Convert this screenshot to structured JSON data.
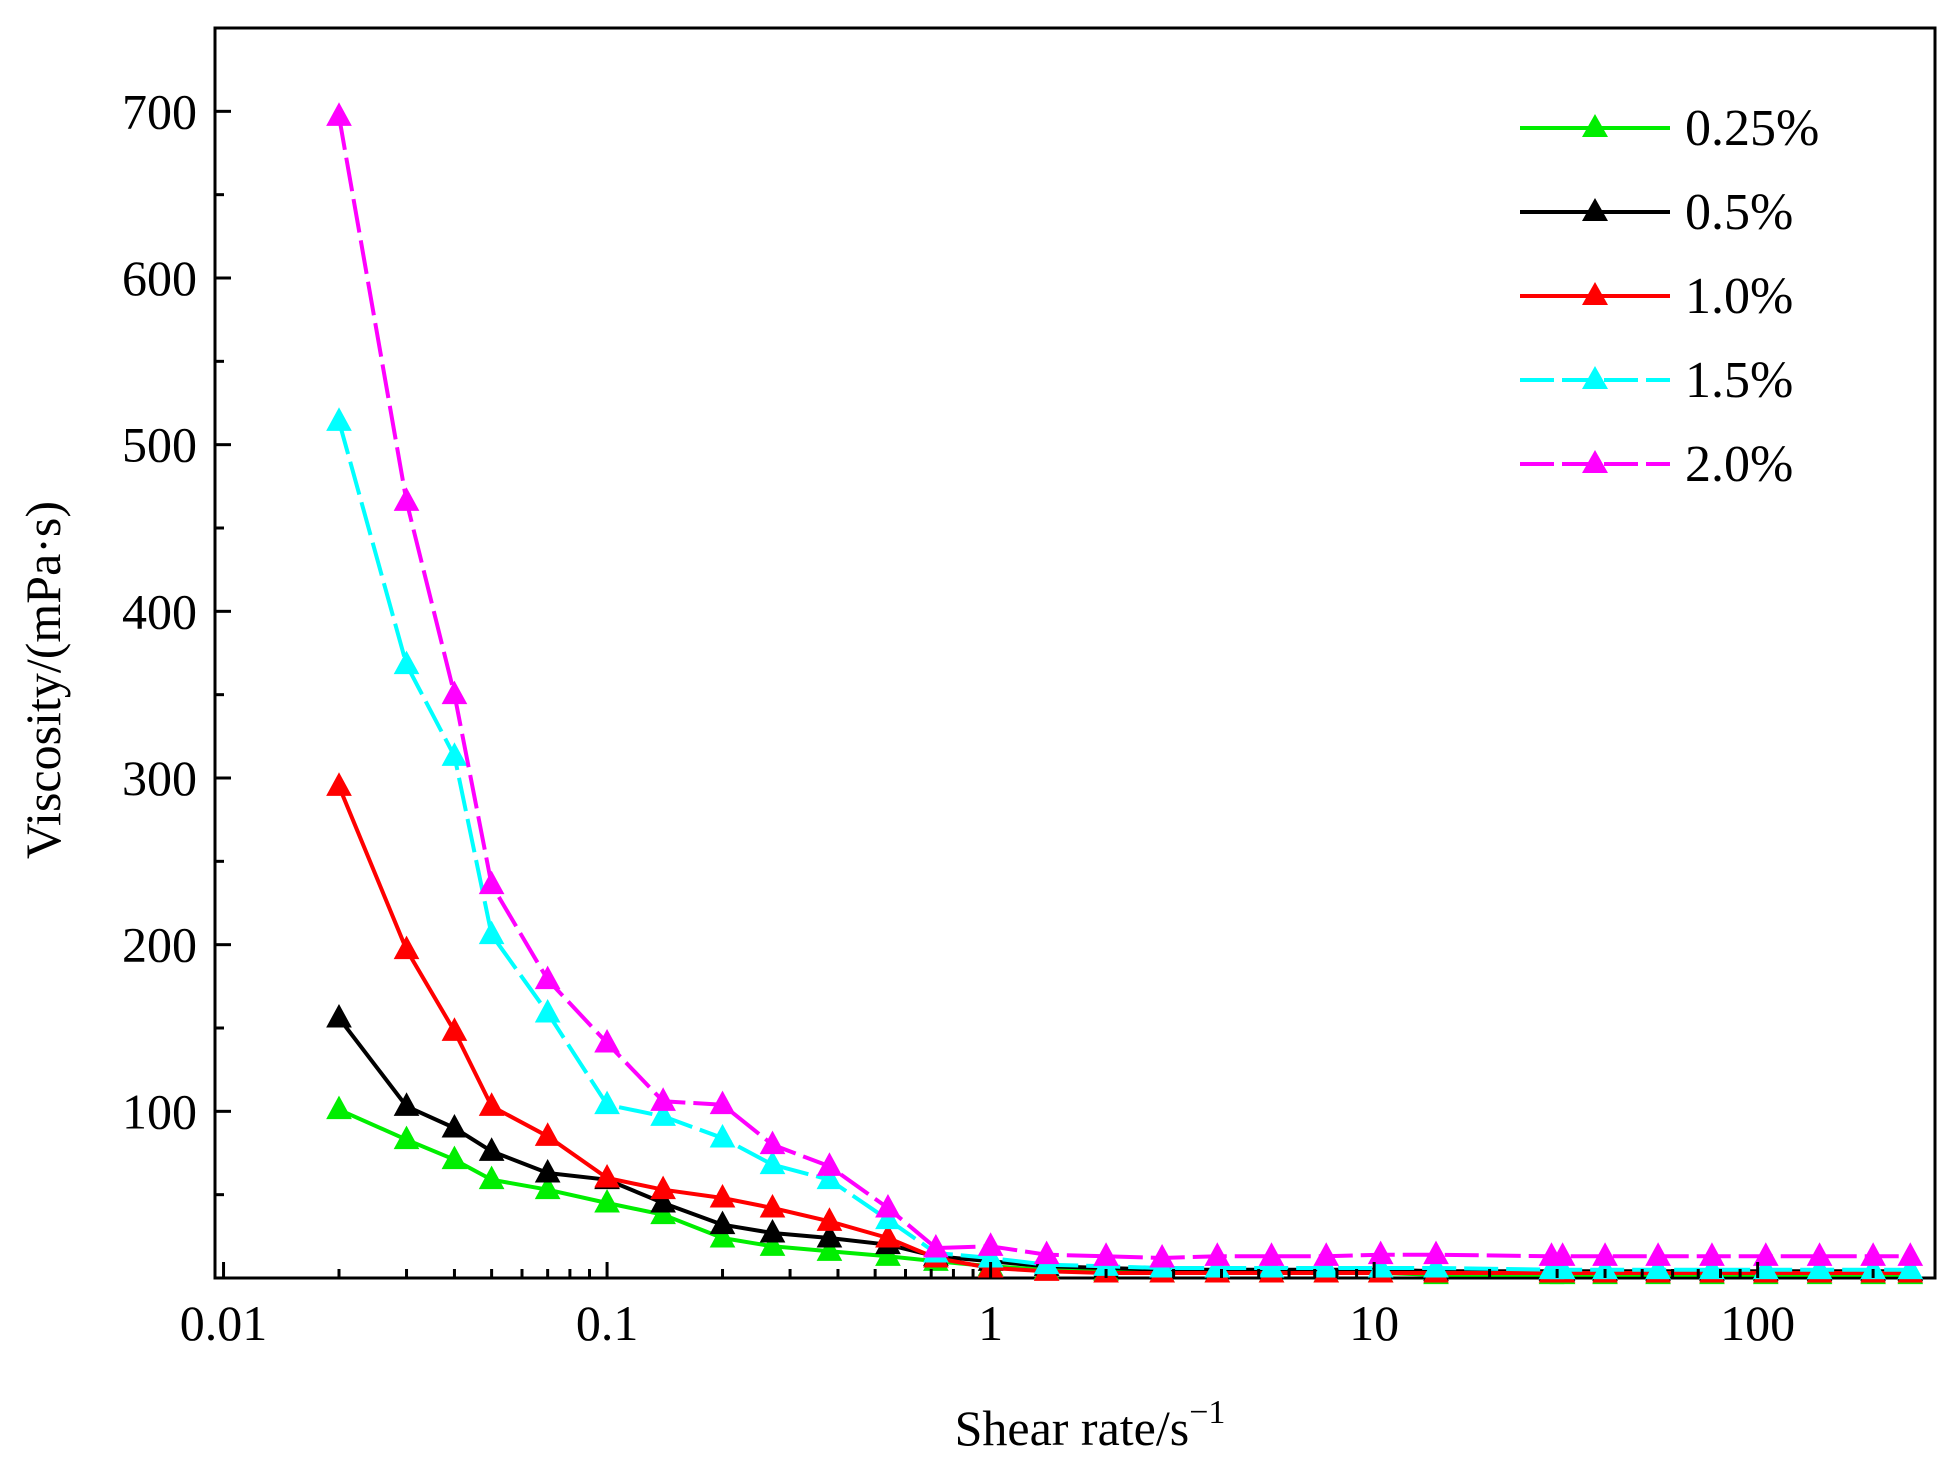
{
  "chart_data": {
    "type": "line",
    "title": "",
    "xlabel": "Shear rate/s",
    "xlabel_superscript": "−1",
    "ylabel": "Viscosity/(mPa·s)",
    "xscale": "log",
    "xlim": [
      0.0095,
      290
    ],
    "ylim": [
      0,
      750
    ],
    "x_ticks": [
      0.01,
      0.1,
      1,
      10,
      100
    ],
    "x_tick_labels": [
      "0.01",
      "0.1",
      "1",
      "10",
      "100"
    ],
    "y_ticks": [
      100,
      200,
      300,
      400,
      500,
      600,
      700
    ],
    "y_tick_labels": [
      "100",
      "200",
      "300",
      "400",
      "500",
      "600",
      "700"
    ],
    "legend_position": "top-right",
    "series": [
      {
        "name": "0.25%",
        "color": "#00ee00",
        "dash": "solid",
        "points": [
          [
            0.02,
            101
          ],
          [
            0.03,
            83
          ],
          [
            0.04,
            71
          ],
          [
            0.05,
            59
          ],
          [
            0.07,
            53
          ],
          [
            0.1,
            45
          ],
          [
            0.14,
            38
          ],
          [
            0.2,
            24
          ],
          [
            0.27,
            19
          ],
          [
            0.38,
            16
          ],
          [
            0.54,
            13
          ],
          [
            0.72,
            10
          ],
          [
            1.0,
            7
          ],
          [
            1.4,
            5
          ],
          [
            2.0,
            4
          ],
          [
            2.8,
            3
          ],
          [
            3.9,
            3
          ],
          [
            5.4,
            3
          ],
          [
            7.5,
            3
          ],
          [
            10.4,
            3
          ],
          [
            14.5,
            2
          ],
          [
            29,
            2
          ],
          [
            31,
            2
          ],
          [
            40,
            2
          ],
          [
            55,
            2
          ],
          [
            76,
            2
          ],
          [
            105,
            2
          ],
          [
            145,
            2
          ],
          [
            200,
            2
          ],
          [
            250,
            2
          ]
        ]
      },
      {
        "name": "0.5%",
        "color": "#000000",
        "dash": "solid",
        "points": [
          [
            0.02,
            156
          ],
          [
            0.03,
            103
          ],
          [
            0.04,
            90
          ],
          [
            0.05,
            76
          ],
          [
            0.07,
            63
          ],
          [
            0.1,
            59
          ],
          [
            0.14,
            45
          ],
          [
            0.2,
            32
          ],
          [
            0.27,
            27
          ],
          [
            0.38,
            24
          ],
          [
            0.54,
            20
          ],
          [
            0.72,
            13
          ],
          [
            1.0,
            10
          ],
          [
            1.4,
            7
          ],
          [
            2.0,
            6
          ],
          [
            2.8,
            5
          ],
          [
            3.9,
            5
          ],
          [
            5.4,
            5
          ],
          [
            7.5,
            5
          ],
          [
            10.4,
            5
          ],
          [
            14.5,
            4
          ],
          [
            29,
            4
          ],
          [
            31,
            4
          ],
          [
            40,
            4
          ],
          [
            55,
            4
          ],
          [
            76,
            4
          ],
          [
            105,
            4
          ],
          [
            145,
            4
          ],
          [
            200,
            4
          ],
          [
            250,
            4
          ]
        ]
      },
      {
        "name": "1.0%",
        "color": "#ff0000",
        "dash": "solid",
        "points": [
          [
            0.02,
            295
          ],
          [
            0.03,
            197
          ],
          [
            0.04,
            148
          ],
          [
            0.05,
            103
          ],
          [
            0.07,
            85
          ],
          [
            0.1,
            60
          ],
          [
            0.14,
            53
          ],
          [
            0.2,
            48
          ],
          [
            0.27,
            42
          ],
          [
            0.38,
            34
          ],
          [
            0.54,
            24
          ],
          [
            0.72,
            12
          ],
          [
            1.0,
            6
          ],
          [
            1.4,
            4
          ],
          [
            2.0,
            3
          ],
          [
            2.8,
            3
          ],
          [
            3.9,
            3
          ],
          [
            5.4,
            3
          ],
          [
            7.5,
            3
          ],
          [
            10.4,
            3
          ],
          [
            14.5,
            3
          ],
          [
            29,
            3
          ],
          [
            31,
            3
          ],
          [
            40,
            3
          ],
          [
            55,
            3
          ],
          [
            76,
            3
          ],
          [
            105,
            3
          ],
          [
            145,
            3
          ],
          [
            200,
            3
          ],
          [
            250,
            3
          ]
        ]
      },
      {
        "name": "1.5%",
        "color": "#00ffff",
        "dash": "dashed",
        "points": [
          [
            0.02,
            514
          ],
          [
            0.03,
            368
          ],
          [
            0.04,
            313
          ],
          [
            0.05,
            206
          ],
          [
            0.07,
            159
          ],
          [
            0.1,
            104
          ],
          [
            0.14,
            97
          ],
          [
            0.2,
            84
          ],
          [
            0.27,
            68
          ],
          [
            0.38,
            59
          ],
          [
            0.54,
            35
          ],
          [
            0.72,
            15
          ],
          [
            1.0,
            12
          ],
          [
            1.4,
            8
          ],
          [
            2.0,
            7
          ],
          [
            2.8,
            6
          ],
          [
            3.9,
            6
          ],
          [
            5.4,
            6
          ],
          [
            7.5,
            6
          ],
          [
            10.4,
            6
          ],
          [
            14.5,
            6
          ],
          [
            29,
            5
          ],
          [
            31,
            5
          ],
          [
            40,
            5
          ],
          [
            55,
            5
          ],
          [
            76,
            5
          ],
          [
            105,
            5
          ],
          [
            145,
            5
          ],
          [
            200,
            5
          ],
          [
            250,
            5
          ]
        ]
      },
      {
        "name": "2.0%",
        "color": "#ff00ff",
        "dash": "dashed",
        "points": [
          [
            0.02,
            697
          ],
          [
            0.03,
            466
          ],
          [
            0.04,
            350
          ],
          [
            0.05,
            236
          ],
          [
            0.07,
            179
          ],
          [
            0.1,
            141
          ],
          [
            0.14,
            106
          ],
          [
            0.2,
            104
          ],
          [
            0.27,
            80
          ],
          [
            0.38,
            67
          ],
          [
            0.54,
            42
          ],
          [
            0.72,
            18
          ],
          [
            1.0,
            19
          ],
          [
            1.4,
            14
          ],
          [
            2.0,
            13
          ],
          [
            2.8,
            12
          ],
          [
            3.9,
            13
          ],
          [
            5.4,
            13
          ],
          [
            7.5,
            13
          ],
          [
            10.4,
            14
          ],
          [
            14.5,
            14
          ],
          [
            29,
            13
          ],
          [
            31,
            13
          ],
          [
            40,
            13
          ],
          [
            55,
            13
          ],
          [
            76,
            13
          ],
          [
            105,
            13
          ],
          [
            145,
            13
          ],
          [
            200,
            13
          ],
          [
            250,
            13
          ]
        ]
      }
    ]
  }
}
